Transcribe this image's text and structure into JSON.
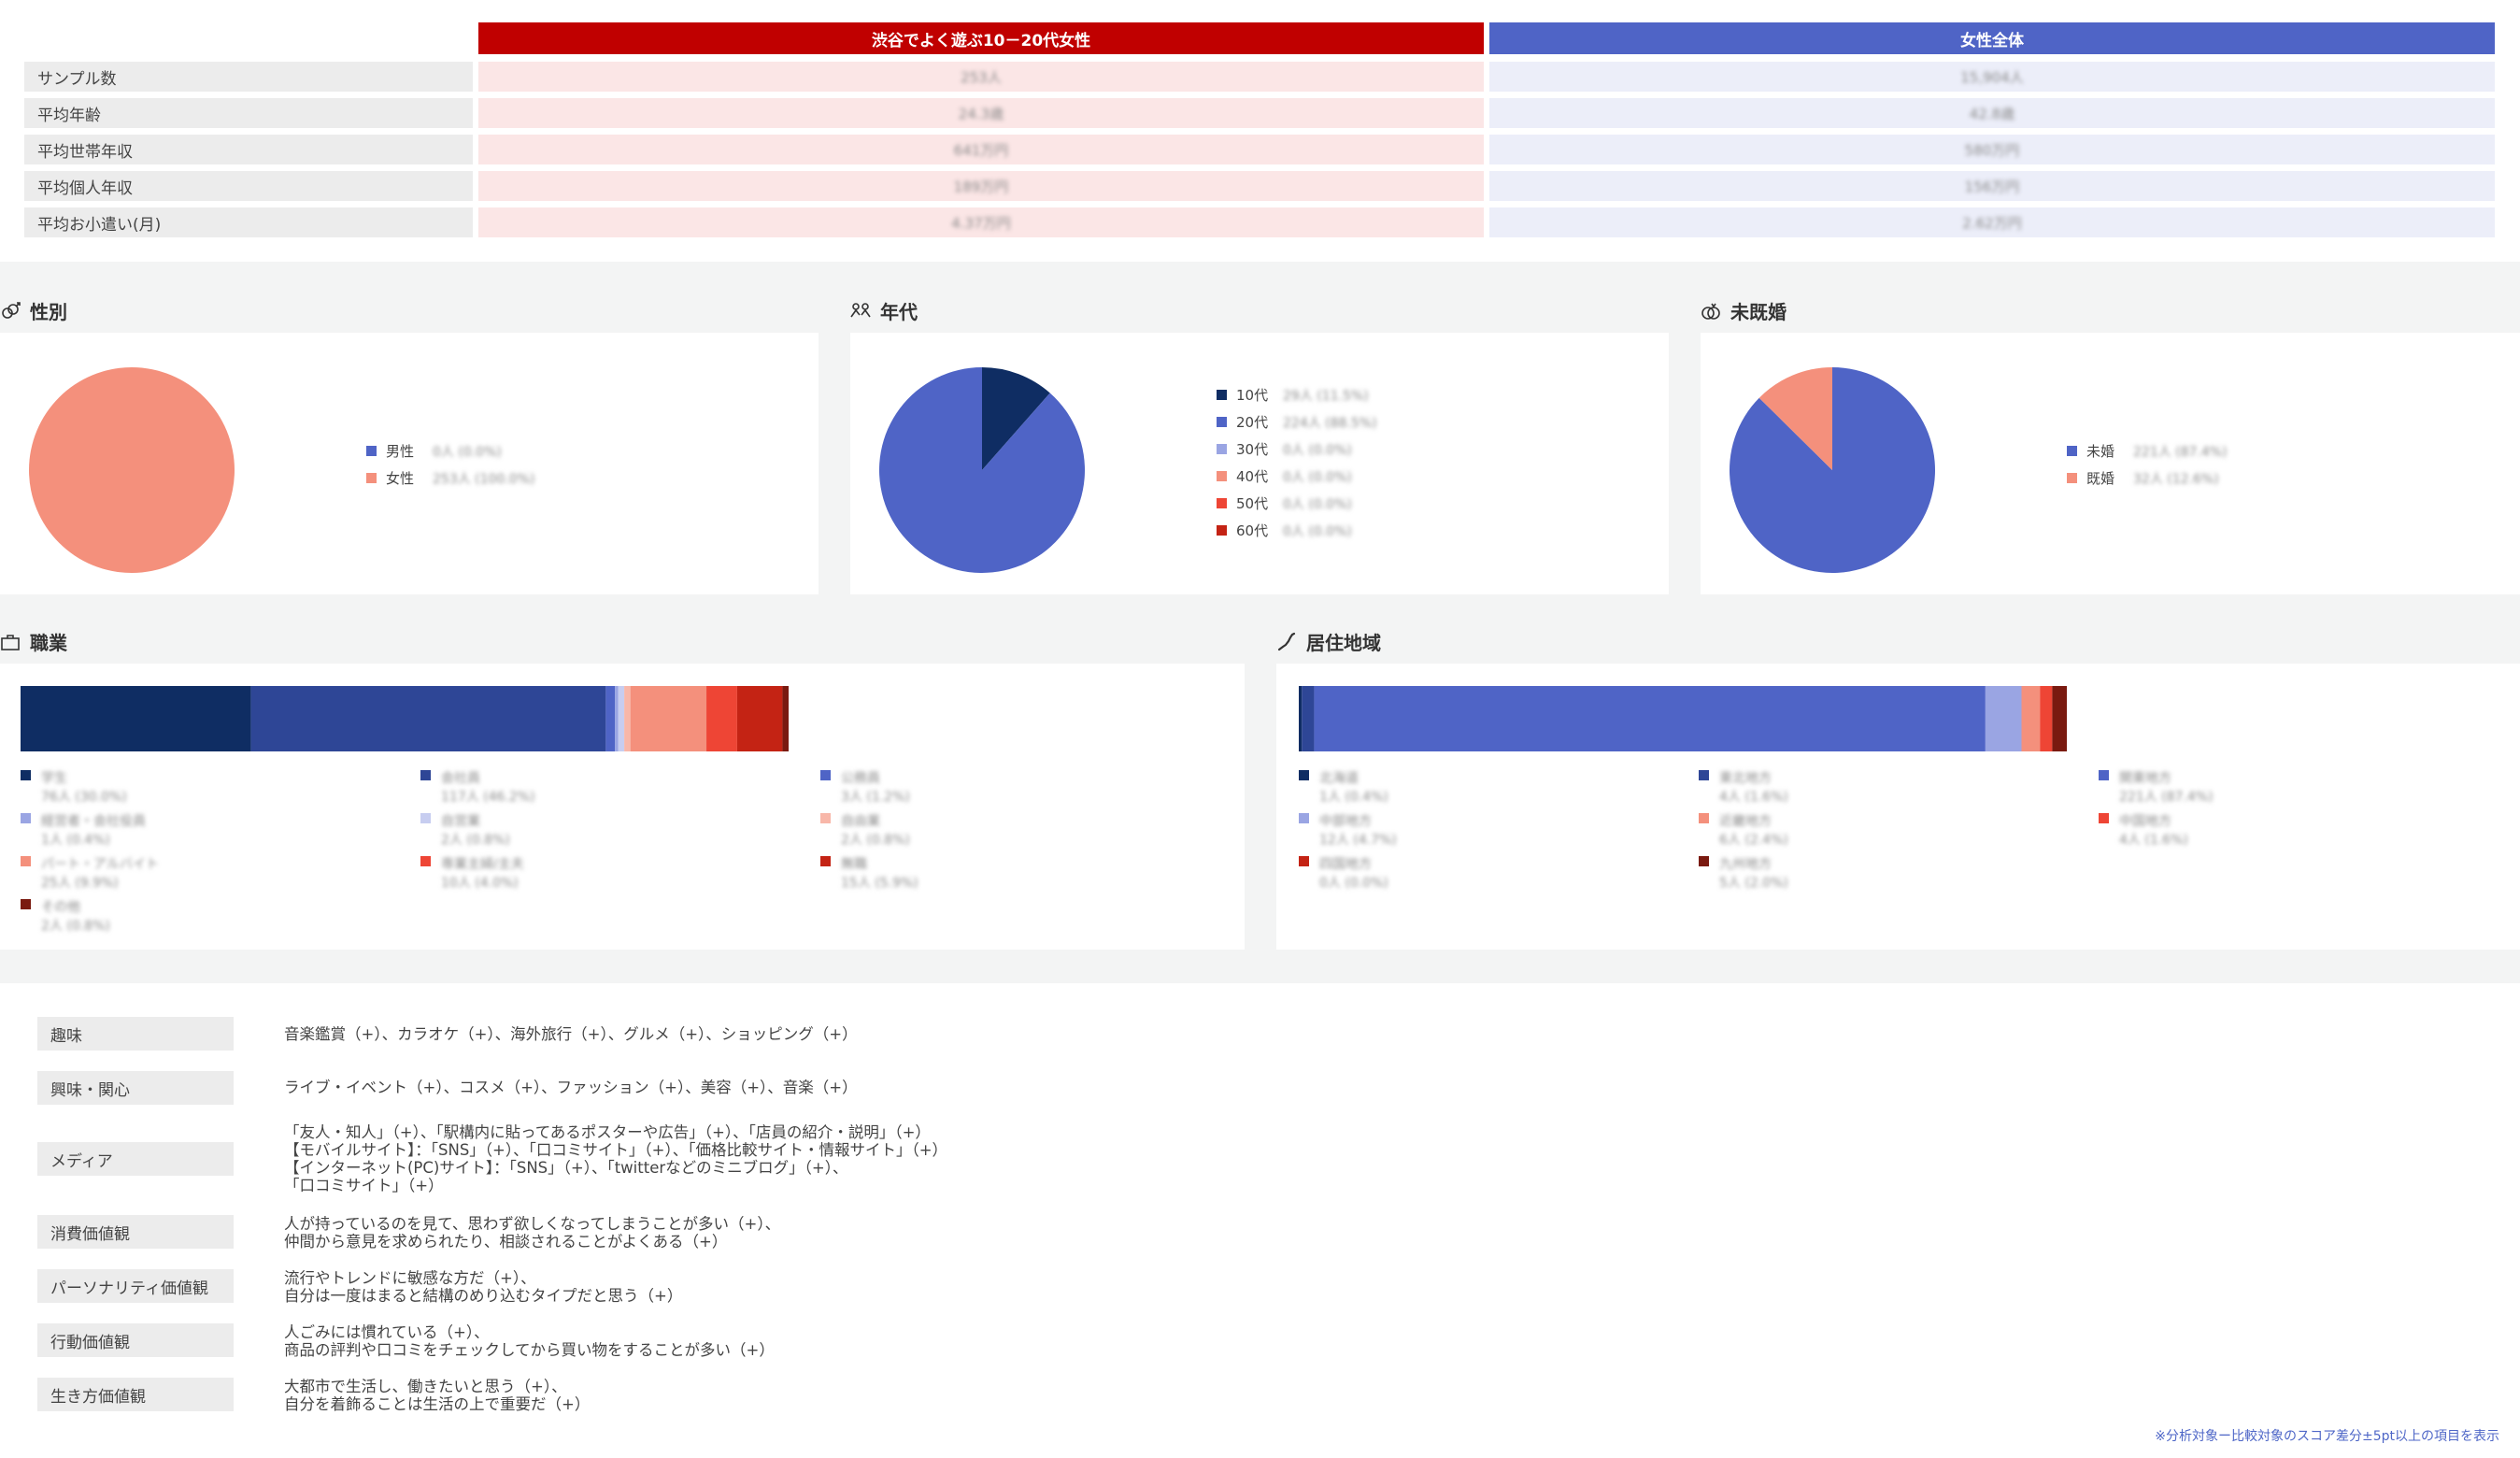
{
  "summary": {
    "columns": [
      {
        "label": "渋谷でよく遊ぶ10－20代女性",
        "color": "#c00000"
      },
      {
        "label": "女性全体",
        "color": "#4f64c6"
      }
    ],
    "rows": [
      {
        "label": "サンプル数",
        "a": "253人",
        "b": "15,904人"
      },
      {
        "label": "平均年齢",
        "a": "24.3歳",
        "b": "42.8歳"
      },
      {
        "label": "平均世帯年収",
        "a": "641万円",
        "b": "580万円"
      },
      {
        "label": "平均個人年収",
        "a": "189万円",
        "b": "156万円"
      },
      {
        "label": "平均お小遣い(月)",
        "a": "4.37万円",
        "b": "2.62万円"
      }
    ]
  },
  "sections": {
    "gender": "性別",
    "age": "年代",
    "marital": "未既婚",
    "occupation": "職業",
    "region": "居住地域"
  },
  "pies": {
    "gender": {
      "slices": [
        {
          "label": "男性",
          "value": "0人 (0.0%)",
          "pct": 0.0,
          "color": "#4f64c6"
        },
        {
          "label": "女性",
          "value": "253人 (100.0%)",
          "pct": 100.0,
          "color": "#f4907c"
        }
      ]
    },
    "age": {
      "slices": [
        {
          "label": "10代",
          "value": "29人 (11.5%)",
          "pct": 11.5,
          "color": "#0f2d63"
        },
        {
          "label": "20代",
          "value": "224人 (88.5%)",
          "pct": 88.5,
          "color": "#4f64c6"
        },
        {
          "label": "30代",
          "value": "0人 (0.0%)",
          "pct": 0.0,
          "color": "#9aa5e3"
        },
        {
          "label": "40代",
          "value": "0人 (0.0%)",
          "pct": 0.0,
          "color": "#f4907c"
        },
        {
          "label": "50代",
          "value": "0人 (0.0%)",
          "pct": 0.0,
          "color": "#ee4535"
        },
        {
          "label": "60代",
          "value": "0人 (0.0%)",
          "pct": 0.0,
          "color": "#c42314"
        }
      ]
    },
    "marital": {
      "slices": [
        {
          "label": "未婚",
          "value": "221人 (87.4%)",
          "pct": 87.4,
          "color": "#4f64c6"
        },
        {
          "label": "既婚",
          "value": "32人 (12.6%)",
          "pct": 12.6,
          "color": "#f4907c"
        }
      ]
    }
  },
  "bars": {
    "occupation": {
      "segments": [
        {
          "label": "学生",
          "value": "76人 (30.0%)",
          "pct": 30.0,
          "color": "#0f2d63"
        },
        {
          "label": "会社員",
          "value": "117人 (46.2%)",
          "pct": 46.2,
          "color": "#2e4696"
        },
        {
          "label": "公務員",
          "value": "3人 (1.2%)",
          "pct": 1.2,
          "color": "#4f64c6"
        },
        {
          "label": "経営者・会社役員",
          "value": "1人 (0.4%)",
          "pct": 0.4,
          "color": "#9aa5e3"
        },
        {
          "label": "自営業",
          "value": "2人 (0.8%)",
          "pct": 0.8,
          "color": "#c7cdf0"
        },
        {
          "label": "自由業",
          "value": "2人 (0.8%)",
          "pct": 0.8,
          "color": "#f8b7a9"
        },
        {
          "label": "パート・アルバイト",
          "value": "25人 (9.9%)",
          "pct": 9.9,
          "color": "#f4907c"
        },
        {
          "label": "専業主婦/主夫",
          "value": "10人 (4.0%)",
          "pct": 4.0,
          "color": "#ee4535"
        },
        {
          "label": "無職",
          "value": "15人 (5.9%)",
          "pct": 5.9,
          "color": "#c42314"
        },
        {
          "label": "その他",
          "value": "2人 (0.8%)",
          "pct": 0.8,
          "color": "#7a1a10"
        }
      ]
    },
    "region": {
      "segments": [
        {
          "label": "北海道",
          "value": "1人 (0.4%)",
          "pct": 0.4,
          "color": "#0f2d63"
        },
        {
          "label": "東北地方",
          "value": "4人 (1.6%)",
          "pct": 1.6,
          "color": "#2e4696"
        },
        {
          "label": "関東地方",
          "value": "221人 (87.4%)",
          "pct": 87.4,
          "color": "#4f64c6"
        },
        {
          "label": "中部地方",
          "value": "12人 (4.7%)",
          "pct": 4.7,
          "color": "#9aa5e3"
        },
        {
          "label": "近畿地方",
          "value": "6人 (2.4%)",
          "pct": 2.4,
          "color": "#f4907c"
        },
        {
          "label": "中国地方",
          "value": "4人 (1.6%)",
          "pct": 1.6,
          "color": "#ee4535"
        },
        {
          "label": "四国地方",
          "value": "0人 (0.0%)",
          "pct": 0.0,
          "color": "#c42314"
        },
        {
          "label": "九州地方",
          "value": "5人 (2.0%)",
          "pct": 2.0,
          "color": "#7a1a10"
        }
      ]
    }
  },
  "traits": [
    {
      "label": "趣味",
      "text": "音楽鑑賞（+）、カラオケ（+）、海外旅行（+）、グルメ（+）、ショッピング（+）"
    },
    {
      "label": "興味・関心",
      "text": "ライブ・イベント（+）、コスメ（+）、ファッション（+）、美容（+）、音楽（+）"
    },
    {
      "label": "メディア",
      "text": "「友人・知人」（+）、「駅構内に貼ってあるポスターや広告」（+）、「店員の紹介・説明」（+）\n【モバイルサイト】：「SNS」（+）、「口コミサイト」（+）、「価格比較サイト・情報サイト」（+）\n【インターネット(PC)サイト】：「SNS」（+）、「twitterなどのミニブログ」（+）、\n「口コミサイト」（+）"
    },
    {
      "label": "消費価値観",
      "text": "人が持っているのを見て、思わず欲しくなってしまうことが多い（+）、\n仲間から意見を求められたり、相談されることがよくある（+）"
    },
    {
      "label": "パーソナリティ価値観",
      "text": "流行やトレンドに敏感な方だ（+）、\n自分は一度はまると結構のめり込むタイプだと思う（+）"
    },
    {
      "label": "行動価値観",
      "text": "人ごみには慣れている（+）、\n商品の評判や口コミをチェックしてから買い物をすることが多い（+）"
    },
    {
      "label": "生き方価値観",
      "text": "大都市で生活し、働きたいと思う（+）、\n自分を着飾ることは生活の上で重要だ（+）"
    }
  ],
  "footnote": "※分析対象ー比較対象のスコア差分±5pt以上の項目を表示"
}
